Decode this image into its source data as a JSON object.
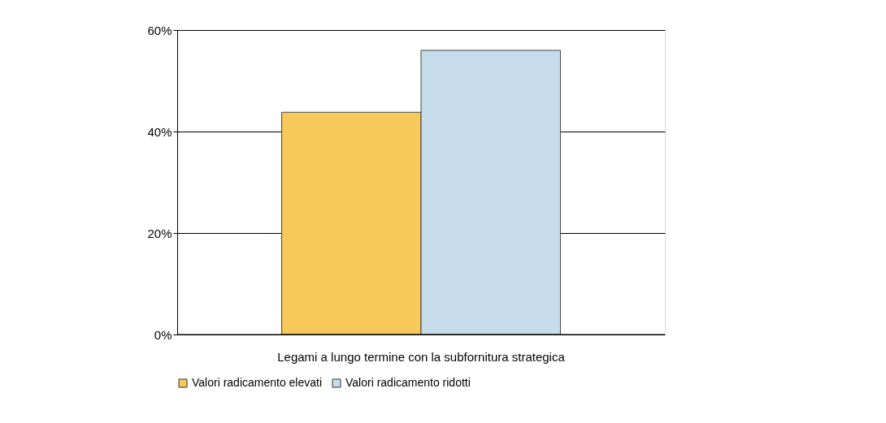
{
  "chart_data": {
    "type": "bar",
    "categories": [
      "Legami a lungo termine con la subfornitura strategica"
    ],
    "series": [
      {
        "name": "Valori radicamento elevati",
        "color": "#f7c85a",
        "values": [
          43.8
        ]
      },
      {
        "name": "Valori radicamento ridotti",
        "color": "#c6dcea",
        "values": [
          56
        ]
      }
    ],
    "ylim": [
      0,
      60
    ],
    "yticks": [
      {
        "value": 0,
        "label": "0%"
      },
      {
        "value": 20,
        "label": "20%"
      },
      {
        "value": 40,
        "label": "40%"
      },
      {
        "value": 60,
        "label": "60%"
      }
    ],
    "grid": "y",
    "legend": "bottom"
  }
}
